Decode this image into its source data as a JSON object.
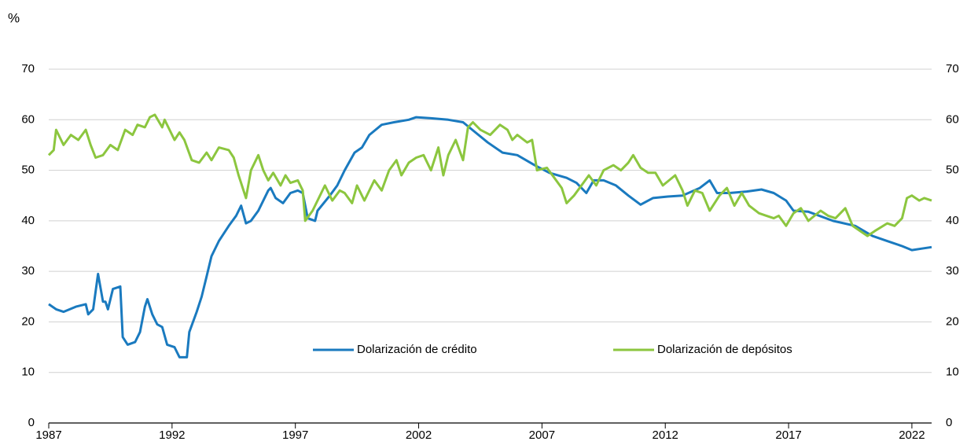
{
  "chart_data": {
    "type": "line",
    "y_unit_label": "%",
    "xlim": [
      1987,
      2022.8
    ],
    "xticks": [
      1987,
      1992,
      1997,
      2002,
      2007,
      2012,
      2017,
      2022
    ],
    "ylim": [
      0,
      70
    ],
    "yticks": [
      0,
      10,
      20,
      30,
      40,
      50,
      60,
      70
    ],
    "y2lim": [
      0,
      70
    ],
    "y2ticks": [
      0,
      10,
      20,
      30,
      40,
      50,
      60,
      70
    ],
    "grid": true,
    "legend": "inside",
    "series": [
      {
        "name": "Dolarización de crédito",
        "color": "#1a7abf",
        "x": [
          1987.0,
          1987.3,
          1987.6,
          1988.1,
          1988.5,
          1988.6,
          1988.8,
          1989.0,
          1989.2,
          1989.3,
          1989.4,
          1989.6,
          1989.9,
          1990.0,
          1990.2,
          1990.5,
          1990.7,
          1990.9,
          1991.0,
          1991.2,
          1991.4,
          1991.6,
          1991.8,
          1992.1,
          1992.3,
          1992.6,
          1992.7,
          1993.0,
          1993.2,
          1993.4,
          1993.6,
          1993.9,
          1994.3,
          1994.6,
          1994.8,
          1995.0,
          1995.2,
          1995.5,
          1995.9,
          1996.0,
          1996.2,
          1996.5,
          1996.8,
          1997.1,
          1997.3,
          1997.5,
          1997.8,
          1997.9,
          1998.4,
          1998.7,
          1999.0,
          1999.4,
          1999.7,
          2000.0,
          2000.5,
          2001.0,
          2001.6,
          2001.9,
          2002.5,
          2003.2,
          2003.8,
          2004.3,
          2004.8,
          2005.4,
          2006.0,
          2006.7,
          2007.3,
          2008.0,
          2008.4,
          2008.8,
          2009.1,
          2009.5,
          2010.0,
          2010.5,
          2011.0,
          2011.5,
          2012.1,
          2012.7,
          2013.4,
          2013.8,
          2014.1,
          2014.6,
          2015.3,
          2015.9,
          2016.4,
          2016.9,
          2017.2,
          2017.8,
          2018.8,
          2019.7,
          2020.4,
          2021.0,
          2021.6,
          2022.0,
          2022.4,
          2022.8
        ],
        "values": [
          23.5,
          22.5,
          22,
          23,
          23.5,
          21.5,
          22.5,
          29.5,
          24,
          24,
          22.5,
          26.5,
          27,
          17,
          15.5,
          16,
          18,
          23,
          24.5,
          21.5,
          19.5,
          19,
          15.5,
          15,
          13,
          13,
          18,
          22,
          25,
          29,
          33,
          36,
          39,
          41,
          43,
          39.5,
          40,
          42,
          46,
          46.5,
          44.5,
          43.5,
          45.5,
          46,
          45.5,
          40.5,
          40,
          42,
          45,
          47,
          50,
          53.5,
          54.5,
          57,
          59,
          59.5,
          60,
          60.5,
          60.3,
          60,
          59.5,
          57.5,
          55.5,
          53.5,
          53,
          51,
          49.5,
          48.5,
          47.5,
          45.5,
          48,
          48,
          47,
          45,
          43.2,
          44.5,
          44.8,
          45,
          46.5,
          48,
          45.5,
          45.5,
          45.8,
          46.2,
          45.5,
          44,
          42,
          41.8,
          40,
          39,
          37,
          36,
          35,
          34.2,
          34.5,
          34.8
        ]
      },
      {
        "name": "Dolarización de depósitos",
        "color": "#8cc63f",
        "x": [
          1987.0,
          1987.2,
          1987.3,
          1987.6,
          1987.9,
          1988.2,
          1988.5,
          1988.7,
          1988.9,
          1989.2,
          1989.5,
          1989.8,
          1990.1,
          1990.4,
          1990.6,
          1990.9,
          1991.1,
          1991.3,
          1991.6,
          1991.7,
          1991.9,
          1992.1,
          1992.3,
          1992.5,
          1992.8,
          1993.1,
          1993.4,
          1993.6,
          1993.9,
          1994.3,
          1994.5,
          1994.7,
          1995.0,
          1995.2,
          1995.5,
          1995.7,
          1995.9,
          1996.1,
          1996.4,
          1996.6,
          1996.8,
          1997.1,
          1997.3,
          1997.4,
          1997.7,
          1997.9,
          1998.2,
          1998.5,
          1998.8,
          1999.0,
          1999.3,
          1999.5,
          1999.8,
          2000.2,
          2000.5,
          2000.8,
          2001.1,
          2001.3,
          2001.6,
          2001.9,
          2002.2,
          2002.5,
          2002.8,
          2003.0,
          2003.2,
          2003.5,
          2003.8,
          2004.0,
          2004.2,
          2004.5,
          2004.9,
          2005.3,
          2005.6,
          2005.8,
          2006.0,
          2006.4,
          2006.6,
          2006.8,
          2007.2,
          2007.5,
          2007.8,
          2008.0,
          2008.3,
          2008.6,
          2008.9,
          2009.2,
          2009.5,
          2009.9,
          2010.2,
          2010.5,
          2010.7,
          2011.0,
          2011.3,
          2011.6,
          2011.9,
          2012.4,
          2012.7,
          2012.9,
          2013.2,
          2013.5,
          2013.8,
          2014.2,
          2014.5,
          2014.8,
          2015.1,
          2015.4,
          2015.8,
          2016.1,
          2016.4,
          2016.6,
          2016.9,
          2017.2,
          2017.5,
          2017.8,
          2018.3,
          2018.6,
          2018.9,
          2019.3,
          2019.6,
          2019.9,
          2020.2,
          2020.5,
          2021.0,
          2021.3,
          2021.6,
          2021.8,
          2022.0,
          2022.3,
          2022.5,
          2022.8
        ],
        "values": [
          53,
          54,
          58,
          55,
          57,
          56,
          58,
          55,
          52.5,
          53,
          55,
          54,
          58,
          57,
          59,
          58.5,
          60.5,
          61,
          58.5,
          60,
          58,
          56,
          57.5,
          56,
          52,
          51.5,
          53.5,
          52,
          54.5,
          54,
          52.5,
          49,
          44.5,
          50,
          53,
          50,
          48,
          49.5,
          47,
          49,
          47.5,
          48,
          46,
          40,
          42,
          44,
          47,
          44,
          46,
          45.5,
          43.5,
          47,
          44,
          48,
          46,
          50,
          52,
          49,
          51.5,
          52.5,
          53,
          50,
          54.5,
          49,
          53,
          56,
          52,
          58.5,
          59.5,
          58,
          57,
          59,
          58,
          56,
          57,
          55.5,
          56,
          50,
          50.5,
          48.5,
          46.5,
          43.5,
          45,
          47,
          49,
          47,
          50,
          51,
          50,
          51.5,
          53,
          50.5,
          49.5,
          49.5,
          47,
          49,
          46,
          43,
          46,
          45.5,
          42,
          45,
          46.5,
          43,
          45.5,
          43,
          41.5,
          41,
          40.5,
          41,
          39,
          41.5,
          42.5,
          40,
          42,
          41,
          40.5,
          42.5,
          39,
          38,
          37,
          38,
          39.5,
          39,
          40.5,
          44.5,
          45,
          44,
          44.5,
          44
        ]
      }
    ]
  }
}
